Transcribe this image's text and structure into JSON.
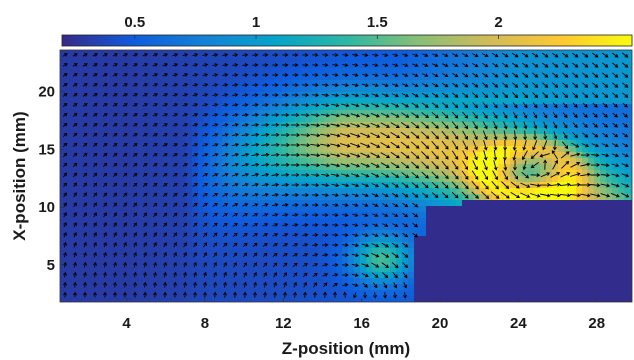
{
  "chart_data": {
    "type": "heatmap",
    "subtype": "velocity magnitude field with vector arrows",
    "xlabel": "Z-position (mm)",
    "ylabel": "X-position (mm)",
    "x_ticks": [
      4,
      8,
      12,
      16,
      20,
      24,
      28
    ],
    "y_ticks": [
      5,
      10,
      15,
      20
    ],
    "xlim": [
      0.6,
      29.8
    ],
    "ylim": [
      1.8,
      23.6
    ],
    "colorbar": {
      "orientation": "horizontal",
      "location": "top",
      "ticks": [
        0.5,
        1,
        1.5,
        2
      ],
      "range": [
        0.2,
        2.55
      ],
      "colormap": "parula",
      "colors": [
        "#352a87",
        "#0f5cdd",
        "#1481d6",
        "#06a4ca",
        "#2eb7a4",
        "#87bf77",
        "#d1bb59",
        "#fec832",
        "#f9fb0e"
      ]
    },
    "features": {
      "vortex_center": {
        "x": 24.5,
        "y": 13.0
      },
      "masked_region": "low-velocity region at bottom right (z > 18.5, x < 10.5)",
      "high_speed_band": "arc from (z 17, x 6) up through (z 22, x 16) to (z 27, x 20)"
    },
    "grid": false,
    "arrow_color": "#000000"
  }
}
